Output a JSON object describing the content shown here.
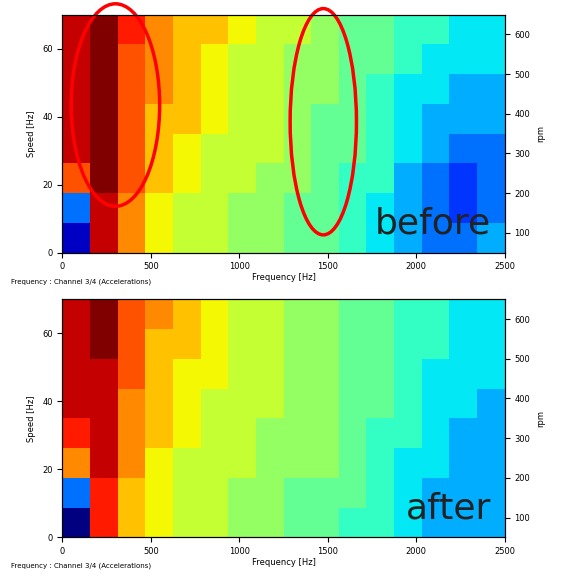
{
  "chart_data": [
    {
      "type": "heatmap",
      "xlabel": "Frequency [Hz]",
      "ylabel": "Speed [Hz]",
      "y2label": "rpm",
      "footnote": "Frequency : Channel 3/4 (Accelerations)",
      "annotations": [
        "before"
      ],
      "xlim": [
        0,
        2500
      ],
      "xticks": [
        0,
        500,
        1000,
        1500,
        2000,
        2500
      ],
      "ylim": [
        0,
        70
      ],
      "yticks": [
        0,
        20,
        40,
        60
      ],
      "y2lim": [
        50,
        650
      ],
      "y2ticks": [
        100,
        200,
        300,
        400,
        500,
        600
      ],
      "grid": false,
      "cells": [
        [
          1.5,
          9,
          7.5,
          6.5,
          6,
          6,
          5.5,
          5.5,
          5,
          5,
          4.5,
          4,
          3.5,
          3,
          3,
          3.5
        ],
        [
          3,
          9,
          7.5,
          6.5,
          6,
          6,
          5.5,
          5.5,
          5,
          5,
          4.5,
          4,
          3.5,
          3,
          2.5,
          3
        ],
        [
          8,
          9.5,
          8,
          7,
          6.5,
          6,
          6,
          5.5,
          5.5,
          5,
          4.5,
          4.5,
          3.5,
          3,
          2.5,
          3
        ],
        [
          9,
          9.5,
          8,
          7,
          6.5,
          6,
          6,
          6,
          5.5,
          5,
          5,
          4.5,
          4,
          3.5,
          3,
          3
        ],
        [
          9,
          9.5,
          8,
          7,
          7,
          6.5,
          6,
          6,
          5.5,
          5,
          5,
          4.5,
          4,
          3.5,
          3.5,
          3.5
        ],
        [
          9,
          9.5,
          8,
          7.5,
          7,
          6.5,
          6,
          6,
          5.5,
          5.5,
          5,
          4.5,
          4,
          4,
          3.5,
          3.5
        ],
        [
          9,
          9.5,
          8,
          7.5,
          7,
          6.5,
          6,
          6,
          5.5,
          5.5,
          5,
          5,
          4.5,
          4,
          4,
          4
        ],
        [
          9,
          9.5,
          8.5,
          7.5,
          7,
          7,
          6.5,
          6,
          6,
          5.5,
          5,
          5,
          4.5,
          4.5,
          4,
          4
        ]
      ]
    },
    {
      "type": "heatmap",
      "xlabel": "Frequency [Hz]",
      "ylabel": "Speed [Hz]",
      "y2label": "rpm",
      "footnote": "Frequency : Channel 3/4 (Accelerations)",
      "annotations": [
        "after"
      ],
      "xlim": [
        0,
        2500
      ],
      "xticks": [
        0,
        500,
        1000,
        1500,
        2000,
        2500
      ],
      "ylim": [
        0,
        70
      ],
      "yticks": [
        0,
        20,
        40,
        60
      ],
      "y2lim": [
        50,
        650
      ],
      "y2ticks": [
        100,
        200,
        300,
        400,
        500,
        600
      ],
      "grid": false,
      "cells": [
        [
          1,
          8.5,
          7,
          6.5,
          6,
          6,
          5.5,
          5.5,
          5,
          5,
          4.5,
          4.5,
          4,
          3.5,
          3.5,
          3.5
        ],
        [
          3,
          8.5,
          7,
          6.5,
          6,
          6,
          5.5,
          5.5,
          5,
          5,
          5,
          4.5,
          4,
          3.5,
          3.5,
          3.5
        ],
        [
          7.5,
          9,
          7.5,
          6.5,
          6,
          6,
          6,
          5.5,
          5.5,
          5.5,
          5,
          4.5,
          4,
          4,
          3.5,
          3.5
        ],
        [
          8.5,
          9,
          7.5,
          7,
          6.5,
          6,
          6,
          5.5,
          5.5,
          5.5,
          5,
          4.5,
          4.5,
          4,
          3.5,
          3.5
        ],
        [
          9,
          9,
          7.5,
          7,
          6.5,
          6,
          6,
          6,
          5.5,
          5.5,
          5,
          5,
          4.5,
          4,
          4,
          3.5
        ],
        [
          9,
          9,
          8,
          7,
          6.5,
          6.5,
          6,
          6,
          5.5,
          5.5,
          5,
          5,
          4.5,
          4,
          4,
          4
        ],
        [
          9,
          9.5,
          8,
          7,
          7,
          6.5,
          6,
          6,
          5.5,
          5.5,
          5,
          5,
          4.5,
          4.5,
          4,
          4
        ],
        [
          9,
          9.5,
          8,
          7.5,
          7,
          6.5,
          6,
          6,
          5.5,
          5.5,
          5,
          5,
          4.5,
          4.5,
          4,
          4
        ]
      ]
    }
  ]
}
